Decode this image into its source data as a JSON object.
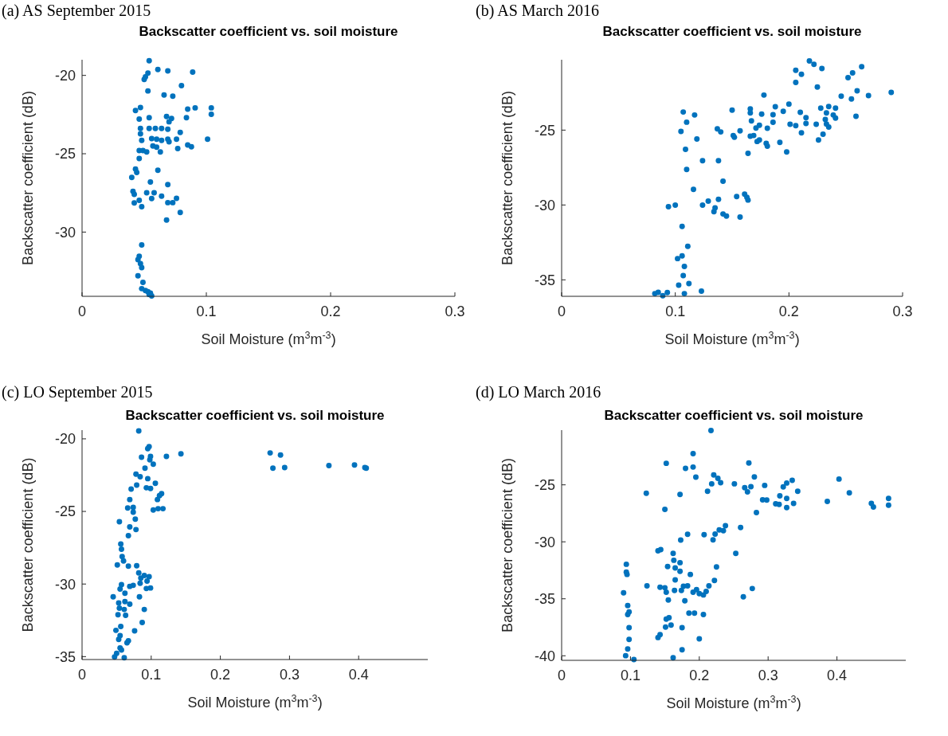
{
  "chart_data": [
    {
      "type": "scatter",
      "subtitle": "(a) AS September 2015",
      "title": "Backscatter coefficient vs. soil moisture",
      "xlabel": "Soil Moisture (m$^{3}$m$^{-3}$)",
      "ylabel": "Backscatter coefficient (dB)",
      "color": "#0072bd",
      "marker": "circle",
      "xlim": [
        0,
        0.3
      ],
      "ylim": [
        -34.1,
        -19
      ],
      "xticks": [
        0,
        0.1,
        0.2,
        0.3
      ],
      "yticks": [
        -30,
        -25,
        -20
      ],
      "x": [
        0.054,
        0.061,
        0.069,
        0.089,
        0.053,
        0.051,
        0.05,
        0.08,
        0.053,
        0.066,
        0.073,
        0.043,
        0.047,
        0.085,
        0.091,
        0.104,
        0.104,
        0.046,
        0.054,
        0.068,
        0.072,
        0.07,
        0.084,
        0.047,
        0.054,
        0.059,
        0.064,
        0.069,
        0.047,
        0.079,
        0.048,
        0.056,
        0.06,
        0.064,
        0.069,
        0.07,
        0.076,
        0.101,
        0.057,
        0.06,
        0.077,
        0.085,
        0.088,
        0.046,
        0.049,
        0.052,
        0.063,
        0.046,
        0.043,
        0.044,
        0.04,
        0.061,
        0.055,
        0.069,
        0.041,
        0.042,
        0.052,
        0.058,
        0.064,
        0.042,
        0.046,
        0.048,
        0.056,
        0.069,
        0.073,
        0.076,
        0.079,
        0.068,
        0.048,
        0.046,
        0.045,
        0.047,
        0.048,
        0.045,
        0.049,
        0.048,
        0.051,
        0.053,
        0.055,
        0.056,
        0.054
      ],
      "values": [
        -19.06,
        -19.62,
        -19.71,
        -19.79,
        -19.85,
        -20.09,
        -20.26,
        -20.65,
        -20.99,
        -21.25,
        -21.33,
        -22.24,
        -22.05,
        -22.15,
        -22.07,
        -22.07,
        -22.48,
        -22.79,
        -22.7,
        -22.62,
        -22.75,
        -22.96,
        -22.7,
        -23.38,
        -23.38,
        -23.38,
        -23.38,
        -23.44,
        -23.73,
        -23.64,
        -24.15,
        -24.03,
        -24.07,
        -24.15,
        -24.07,
        -24.24,
        -24.07,
        -24.07,
        -24.5,
        -24.58,
        -24.67,
        -24.44,
        -24.55,
        -24.8,
        -24.8,
        -24.89,
        -24.89,
        -25.3,
        -25.98,
        -26.19,
        -26.51,
        -26.05,
        -26.8,
        -26.97,
        -27.4,
        -27.59,
        -27.49,
        -27.49,
        -27.71,
        -28.14,
        -27.97,
        -28.38,
        -27.86,
        -28.12,
        -28.12,
        -27.85,
        -28.75,
        -29.23,
        -30.82,
        -31.54,
        -31.76,
        -32.02,
        -32.27,
        -32.79,
        -33.21,
        -33.61,
        -33.73,
        -33.81,
        -33.9,
        -34.07,
        -33.98
      ]
    },
    {
      "type": "scatter",
      "subtitle": "(b) AS March 2016",
      "title": "Backscatter coefficient vs. soil moisture",
      "xlabel": "Soil Moisture (m$^{3}$m$^{-3}$)",
      "ylabel": "Backscatter coefficient (dB)",
      "color": "#0072bd",
      "marker": "circle",
      "xlim": [
        0,
        0.3
      ],
      "ylim": [
        -36.1,
        -20.3
      ],
      "xticks": [
        0,
        0.1,
        0.2,
        0.3
      ],
      "yticks": [
        -35,
        -30,
        -25
      ],
      "x": [
        0.218,
        0.222,
        0.229,
        0.264,
        0.256,
        0.252,
        0.206,
        0.211,
        0.206,
        0.225,
        0.29,
        0.27,
        0.26,
        0.255,
        0.246,
        0.178,
        0.2,
        0.188,
        0.195,
        0.21,
        0.215,
        0.228,
        0.235,
        0.241,
        0.233,
        0.239,
        0.241,
        0.232,
        0.259,
        0.224,
        0.233,
        0.235,
        0.23,
        0.226,
        0.211,
        0.206,
        0.201,
        0.215,
        0.186,
        0.186,
        0.176,
        0.166,
        0.166,
        0.167,
        0.15,
        0.174,
        0.171,
        0.181,
        0.166,
        0.169,
        0.172,
        0.174,
        0.18,
        0.181,
        0.192,
        0.198,
        0.164,
        0.157,
        0.152,
        0.151,
        0.137,
        0.14,
        0.107,
        0.117,
        0.11,
        0.105,
        0.119,
        0.109,
        0.11,
        0.124,
        0.138,
        0.142,
        0.116,
        0.124,
        0.129,
        0.138,
        0.135,
        0.134,
        0.142,
        0.145,
        0.157,
        0.154,
        0.161,
        0.163,
        0.164,
        0.094,
        0.1,
        0.106,
        0.111,
        0.102,
        0.106,
        0.108,
        0.107,
        0.112,
        0.103,
        0.108,
        0.123,
        0.093,
        0.085,
        0.082,
        0.089
      ],
      "values": [
        -20.38,
        -20.61,
        -20.88,
        -20.77,
        -21.18,
        -21.5,
        -21.0,
        -21.27,
        -21.82,
        -22.12,
        -22.48,
        -22.69,
        -22.37,
        -22.92,
        -22.73,
        -22.66,
        -23.26,
        -23.44,
        -23.74,
        -23.81,
        -24.17,
        -23.53,
        -23.42,
        -23.53,
        -23.85,
        -23.99,
        -24.2,
        -24.29,
        -24.08,
        -24.61,
        -24.59,
        -24.79,
        -25.27,
        -25.66,
        -25.18,
        -24.7,
        -24.61,
        -24.56,
        -24.48,
        -23.97,
        -23.93,
        -23.58,
        -23.85,
        -24.38,
        -23.67,
        -24.68,
        -24.86,
        -24.88,
        -25.41,
        -25.36,
        -25.76,
        -25.66,
        -25.89,
        -26.07,
        -25.82,
        -26.46,
        -26.55,
        -25.05,
        -25.48,
        -25.36,
        -24.91,
        -25.12,
        -23.79,
        -23.99,
        -24.47,
        -25.09,
        -25.59,
        -26.28,
        -27.63,
        -27.04,
        -27.04,
        -28.41,
        -28.96,
        -30.01,
        -29.74,
        -29.62,
        -30.2,
        -30.45,
        -30.6,
        -30.74,
        -30.81,
        -29.44,
        -29.28,
        -29.49,
        -29.67,
        -30.12,
        -30.01,
        -31.43,
        -32.76,
        -33.58,
        -33.4,
        -34.11,
        -34.72,
        -35.25,
        -35.36,
        -35.92,
        -35.75,
        -35.85,
        -35.83,
        -35.92,
        -36.06
      ]
    },
    {
      "type": "scatter",
      "subtitle": "(c) LO September 2015",
      "title": "Backscatter coefficient vs. soil moisture",
      "xlabel": "Soil Moisture (m$^{3}$m$^{-3}$)",
      "ylabel": "Backscatter coefficient (dB)",
      "color": "#0072bd",
      "marker": "circle",
      "xlim": [
        0,
        0.5
      ],
      "ylim": [
        -35.2,
        -19.4
      ],
      "xticks": [
        0,
        0.1,
        0.2,
        0.3,
        0.4
      ],
      "yticks": [
        -35,
        -30,
        -25,
        -20
      ],
      "x": [
        0.082,
        0.097,
        0.095,
        0.086,
        0.099,
        0.098,
        0.103,
        0.122,
        0.143,
        0.272,
        0.287,
        0.276,
        0.293,
        0.357,
        0.394,
        0.409,
        0.411,
        0.091,
        0.078,
        0.084,
        0.095,
        0.106,
        0.093,
        0.099,
        0.079,
        0.071,
        0.115,
        0.112,
        0.109,
        0.103,
        0.11,
        0.117,
        0.069,
        0.066,
        0.074,
        0.074,
        0.077,
        0.054,
        0.069,
        0.078,
        0.067,
        0.056,
        0.057,
        0.058,
        0.06,
        0.051,
        0.067,
        0.079,
        0.082,
        0.085,
        0.09,
        0.097,
        0.094,
        0.084,
        0.074,
        0.069,
        0.057,
        0.055,
        0.062,
        0.099,
        0.093,
        0.045,
        0.083,
        0.053,
        0.062,
        0.069,
        0.054,
        0.061,
        0.09,
        0.052,
        0.063,
        0.087,
        0.056,
        0.049,
        0.076,
        0.055,
        0.053,
        0.067,
        0.065,
        0.055,
        0.057,
        0.05,
        0.047,
        0.061
      ],
      "values": [
        -19.46,
        -20.54,
        -20.67,
        -21.26,
        -21.21,
        -21.44,
        -21.75,
        -21.21,
        -21.03,
        -20.97,
        -21.12,
        -22.02,
        -21.98,
        -21.84,
        -21.8,
        -21.98,
        -22.02,
        -22.02,
        -22.43,
        -22.61,
        -22.74,
        -23.06,
        -23.37,
        -23.42,
        -23.19,
        -23.46,
        -23.77,
        -23.91,
        -24.18,
        -24.9,
        -24.81,
        -24.81,
        -24.18,
        -24.76,
        -24.72,
        -25.05,
        -25.53,
        -25.71,
        -26.07,
        -26.25,
        -26.67,
        -27.24,
        -27.6,
        -28.11,
        -28.41,
        -28.68,
        -28.77,
        -28.74,
        -29.23,
        -29.59,
        -29.41,
        -29.5,
        -29.8,
        -29.95,
        -30.09,
        -30.16,
        -30.04,
        -30.34,
        -30.63,
        -30.27,
        -30.31,
        -30.88,
        -30.88,
        -31.3,
        -31.21,
        -31.39,
        -31.66,
        -31.75,
        -31.75,
        -32.11,
        -32.16,
        -32.65,
        -32.92,
        -33.19,
        -33.23,
        -33.55,
        -33.82,
        -33.91,
        -34.05,
        -34.41,
        -34.54,
        -34.77,
        -35.02,
        -35.08
      ]
    },
    {
      "type": "scatter",
      "subtitle": "(d) LO March 2016",
      "title": "Backscatter coefficient vs. soil moisture",
      "xlabel": "Soil Moisture (m$^{3}$m$^{-3}$)",
      "ylabel": "Backscatter coefficient (dB)",
      "color": "#0072bd",
      "marker": "circle",
      "xlim": [
        0,
        0.5
      ],
      "ylim": [
        -40.4,
        -20.2
      ],
      "xticks": [
        0,
        0.1,
        0.2,
        0.3,
        0.4
      ],
      "yticks": [
        -40,
        -35,
        -30,
        -25
      ],
      "x": [
        0.217,
        0.191,
        0.152,
        0.272,
        0.18,
        0.191,
        0.195,
        0.221,
        0.227,
        0.231,
        0.218,
        0.212,
        0.251,
        0.266,
        0.27,
        0.275,
        0.28,
        0.295,
        0.292,
        0.298,
        0.311,
        0.317,
        0.316,
        0.322,
        0.327,
        0.335,
        0.343,
        0.327,
        0.327,
        0.337,
        0.403,
        0.418,
        0.386,
        0.45,
        0.453,
        0.475,
        0.475,
        0.123,
        0.172,
        0.15,
        0.283,
        0.238,
        0.26,
        0.235,
        0.223,
        0.229,
        0.22,
        0.183,
        0.207,
        0.173,
        0.253,
        0.14,
        0.144,
        0.162,
        0.154,
        0.163,
        0.172,
        0.165,
        0.172,
        0.187,
        0.222,
        0.225,
        0.094,
        0.094,
        0.095,
        0.124,
        0.143,
        0.15,
        0.152,
        0.155,
        0.165,
        0.164,
        0.174,
        0.177,
        0.183,
        0.191,
        0.196,
        0.2,
        0.206,
        0.214,
        0.21,
        0.264,
        0.277,
        0.09,
        0.096,
        0.096,
        0.098,
        0.098,
        0.098,
        0.096,
        0.093,
        0.152,
        0.151,
        0.156,
        0.159,
        0.14,
        0.143,
        0.179,
        0.185,
        0.193,
        0.206,
        0.175,
        0.2,
        0.175,
        0.162,
        0.105
      ],
      "values": [
        -20.24,
        -22.26,
        -23.11,
        -23.09,
        -23.55,
        -23.44,
        -24.33,
        -24.13,
        -24.43,
        -24.82,
        -24.91,
        -25.57,
        -24.91,
        -25.25,
        -25.62,
        -25.16,
        -24.31,
        -25.05,
        -26.31,
        -26.33,
        -26.66,
        -25.97,
        -26.72,
        -25.18,
        -24.84,
        -24.61,
        -25.57,
        -26.2,
        -27.0,
        -26.63,
        -24.49,
        -25.71,
        -26.45,
        -26.63,
        -26.95,
        -26.2,
        -26.79,
        -25.74,
        -25.85,
        -27.16,
        -27.44,
        -28.59,
        -28.75,
        -29.02,
        -29.32,
        -28.95,
        -29.83,
        -29.34,
        -29.37,
        -29.85,
        -31.02,
        -30.79,
        -30.68,
        -31.02,
        -32.17,
        -31.62,
        -31.83,
        -32.29,
        -32.59,
        -32.86,
        -33.39,
        -32.2,
        -31.97,
        -32.66,
        -32.86,
        -33.87,
        -33.99,
        -34.03,
        -34.43,
        -35.11,
        -33.34,
        -34.26,
        -34.26,
        -33.9,
        -33.87,
        -34.43,
        -34.2,
        -34.54,
        -34.66,
        -33.87,
        -34.36,
        -34.82,
        -34.1,
        -34.47,
        -35.6,
        -36.38,
        -36.15,
        -37.53,
        -38.56,
        -39.41,
        -39.99,
        -36.79,
        -37.48,
        -36.66,
        -37.3,
        -38.4,
        -38.15,
        -35.18,
        -36.26,
        -36.26,
        -36.38,
        -37.53,
        -38.52,
        -39.48,
        -40.17,
        -40.33
      ]
    }
  ]
}
